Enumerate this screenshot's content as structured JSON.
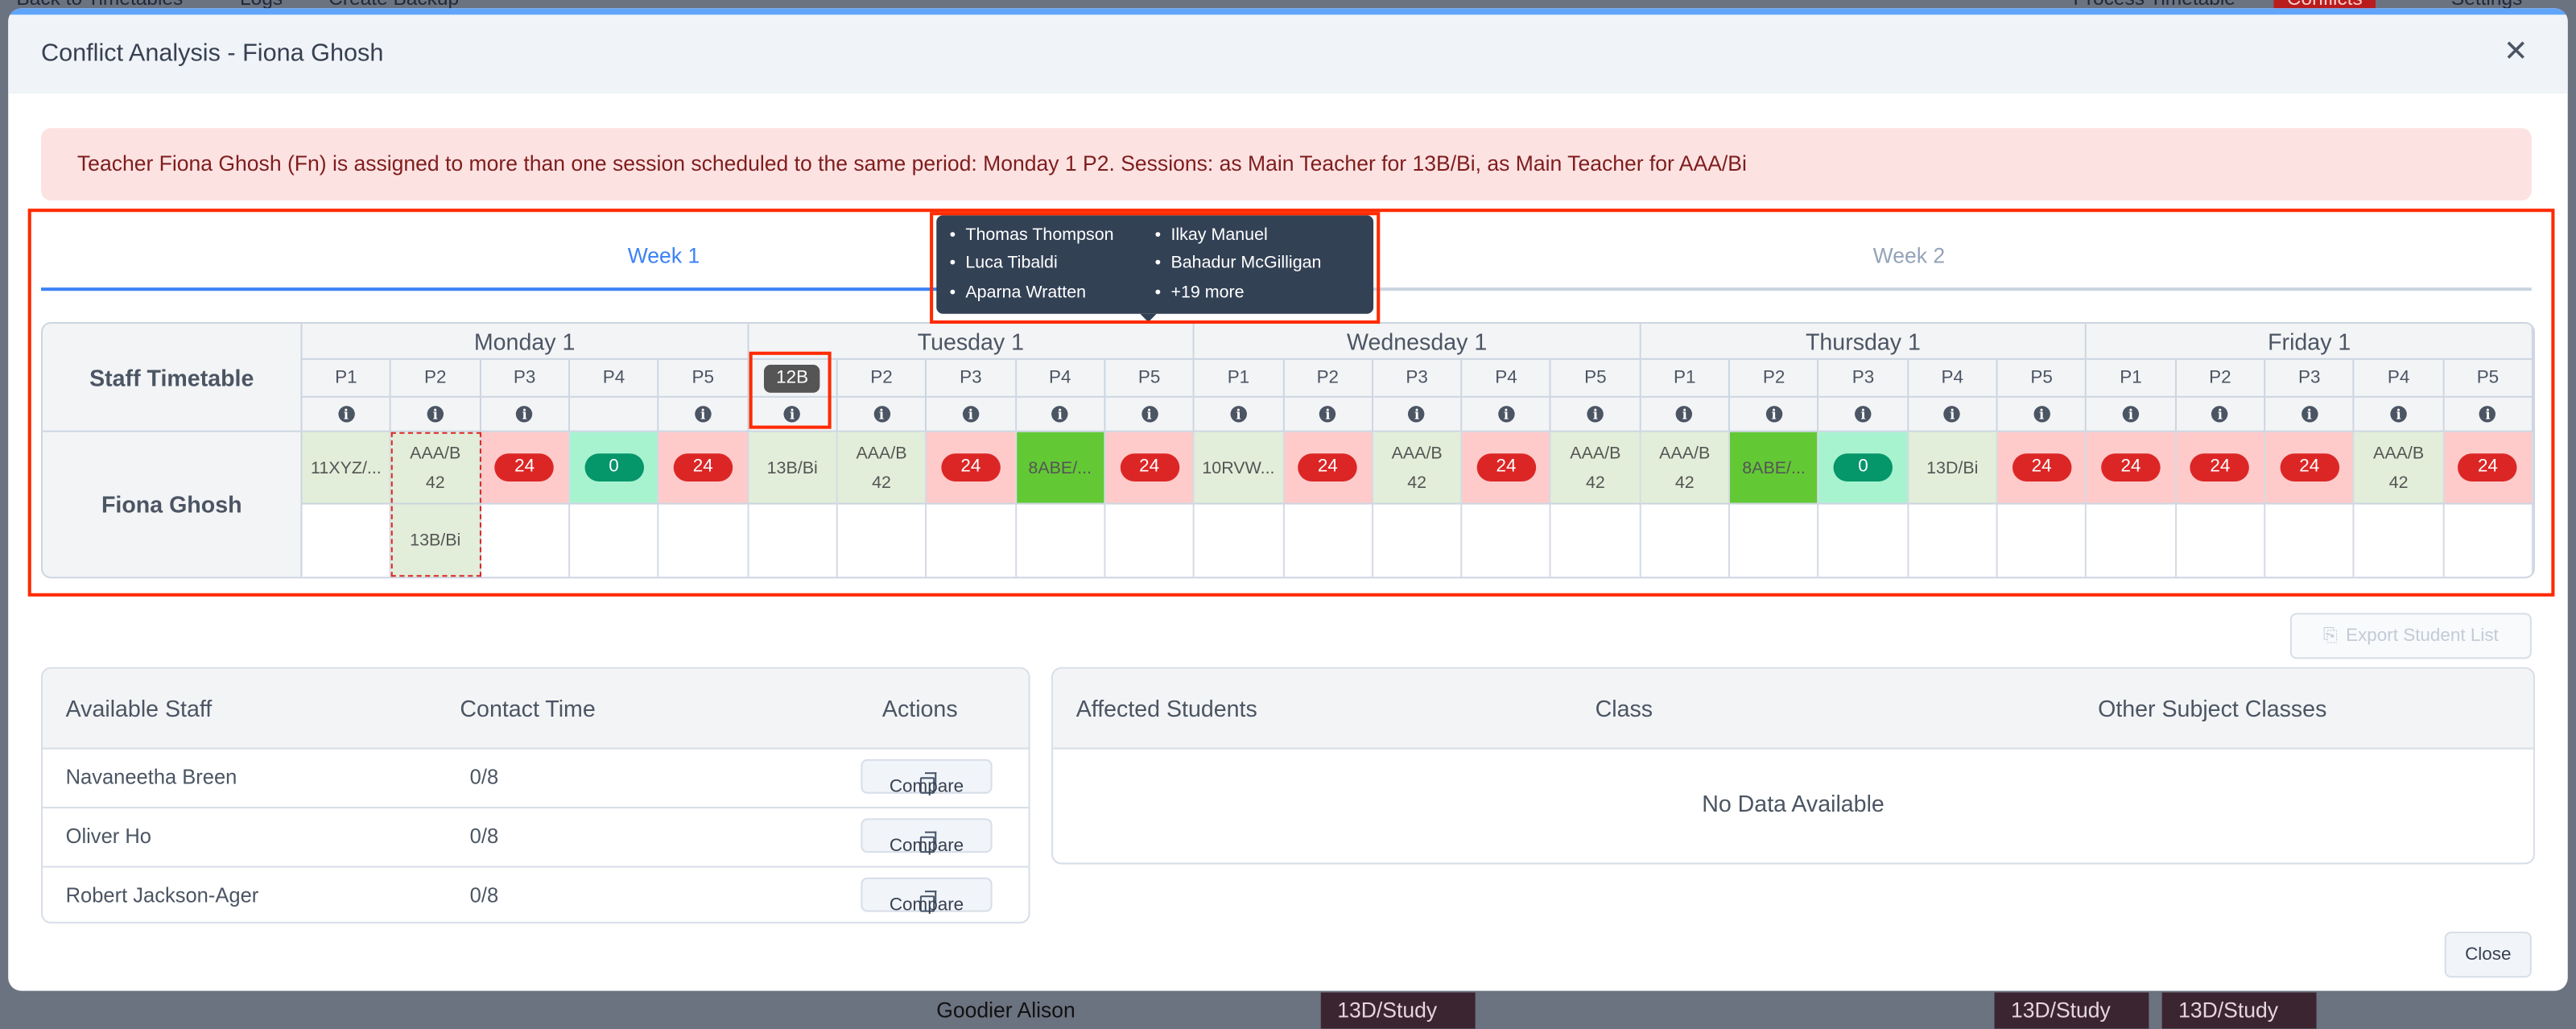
{
  "background": {
    "topbar": {
      "back": "Back to Timetables",
      "logs": "Logs",
      "create_backup": "Create Backup",
      "process": "Process Timetable",
      "conflicts": "Conflicts",
      "settings": "Settings"
    },
    "footer_name": "Goodier Alison",
    "footer_cells": [
      "13D/Study",
      "13D/Study",
      "13D/Study"
    ]
  },
  "modal": {
    "title": "Conflict Analysis - Fiona Ghosh",
    "close_icon": "x-icon",
    "accent_color": "#60a5fa",
    "alert": "Teacher Fiona Ghosh (Fn) is assigned to more than one session scheduled to the same period: Monday 1 P2. Sessions: as Main Teacher for 13B/Bi, as Main Teacher for AAA/Bi",
    "tabs": [
      {
        "label": "Week 1",
        "active": true
      },
      {
        "label": "Week 2",
        "active": false
      }
    ]
  },
  "timetable": {
    "corner": "Staff Timetable",
    "teacher": "Fiona Ghosh",
    "days": [
      "Monday 1",
      "Tuesday 1",
      "Wednesday 1",
      "Thursday 1",
      "Friday 1"
    ],
    "periods": [
      {
        "label": "P1",
        "info": true
      },
      {
        "label": "P2",
        "info": true
      },
      {
        "label": "P3",
        "info": true
      },
      {
        "label": "P4",
        "info": false
      },
      {
        "label": "P5",
        "info": true
      },
      {
        "label": "12B",
        "info": true,
        "pill": true
      },
      {
        "label": "P2",
        "info": true
      },
      {
        "label": "P3",
        "info": true
      },
      {
        "label": "P4",
        "info": true
      },
      {
        "label": "P5",
        "info": true
      },
      {
        "label": "P1",
        "info": true
      },
      {
        "label": "P2",
        "info": true
      },
      {
        "label": "P3",
        "info": true
      },
      {
        "label": "P4",
        "info": true
      },
      {
        "label": "P5",
        "info": true
      },
      {
        "label": "P1",
        "info": true
      },
      {
        "label": "P2",
        "info": true
      },
      {
        "label": "P3",
        "info": true
      },
      {
        "label": "P4",
        "info": true
      },
      {
        "label": "P5",
        "info": true
      },
      {
        "label": "P1",
        "info": true
      },
      {
        "label": "P2",
        "info": true
      },
      {
        "label": "P3",
        "info": true
      },
      {
        "label": "P4",
        "info": true
      },
      {
        "label": "P5",
        "info": true
      }
    ],
    "row1": [
      {
        "text": "11XYZ/...",
        "bg": "light"
      },
      {
        "text": "AAA/B",
        "sub": "42",
        "bg": "light",
        "conflict": true
      },
      {
        "badge": "24",
        "color": "red",
        "bg": "pink"
      },
      {
        "badge": "0",
        "color": "green",
        "bg": "mint"
      },
      {
        "badge": "24",
        "color": "red",
        "bg": "pink"
      },
      {
        "text": "13B/Bi",
        "bg": "light"
      },
      {
        "text": "AAA/B",
        "sub": "42",
        "bg": "light"
      },
      {
        "badge": "24",
        "color": "red",
        "bg": "pink"
      },
      {
        "text": "8ABE/...",
        "bg": "bright"
      },
      {
        "badge": "24",
        "color": "red",
        "bg": "pink"
      },
      {
        "text": "10RVW...",
        "bg": "light"
      },
      {
        "badge": "24",
        "color": "red",
        "bg": "pink"
      },
      {
        "text": "AAA/B",
        "sub": "42",
        "bg": "light"
      },
      {
        "badge": "24",
        "color": "red",
        "bg": "pink"
      },
      {
        "text": "AAA/B",
        "sub": "42",
        "bg": "light"
      },
      {
        "text": "AAA/B",
        "sub": "42",
        "bg": "light"
      },
      {
        "text": "8ABE/...",
        "bg": "bright"
      },
      {
        "badge": "0",
        "color": "green",
        "bg": "mint"
      },
      {
        "text": "13D/Bi",
        "bg": "light"
      },
      {
        "badge": "24",
        "color": "red",
        "bg": "pink"
      },
      {
        "badge": "24",
        "color": "red",
        "bg": "pink"
      },
      {
        "badge": "24",
        "color": "red",
        "bg": "pink"
      },
      {
        "badge": "24",
        "color": "red",
        "bg": "pink"
      },
      {
        "text": "AAA/B",
        "sub": "42",
        "bg": "light"
      },
      {
        "badge": "24",
        "color": "red",
        "bg": "pink"
      }
    ],
    "row2": [
      null,
      {
        "text": "13B/Bi",
        "bg": "light",
        "conflict": true
      },
      null,
      null,
      null,
      null,
      null,
      null,
      null,
      null,
      null,
      null,
      null,
      null,
      null,
      null,
      null,
      null,
      null,
      null,
      null,
      null,
      null,
      null,
      null
    ],
    "tooltip": [
      "Thomas Thompson",
      "Luca Tibaldi",
      "Aparna Wratten",
      "Ilkay Manuel",
      "Bahadur McGilligan",
      "+19 more"
    ]
  },
  "export_button": "Export Student List",
  "staff_table": {
    "headers": [
      "Available Staff",
      "Contact Time",
      "Actions"
    ],
    "rows": [
      {
        "name": "Navaneetha Breen",
        "contact": "0/8",
        "action": "Compare"
      },
      {
        "name": "Oliver Ho",
        "contact": "0/8",
        "action": "Compare"
      },
      {
        "name": "Robert Jackson-Ager",
        "contact": "0/8",
        "action": "Compare"
      }
    ]
  },
  "students_table": {
    "headers": [
      "Affected Students",
      "Class",
      "Other Subject Classes"
    ],
    "empty": "No Data Available"
  },
  "close_button": "Close"
}
